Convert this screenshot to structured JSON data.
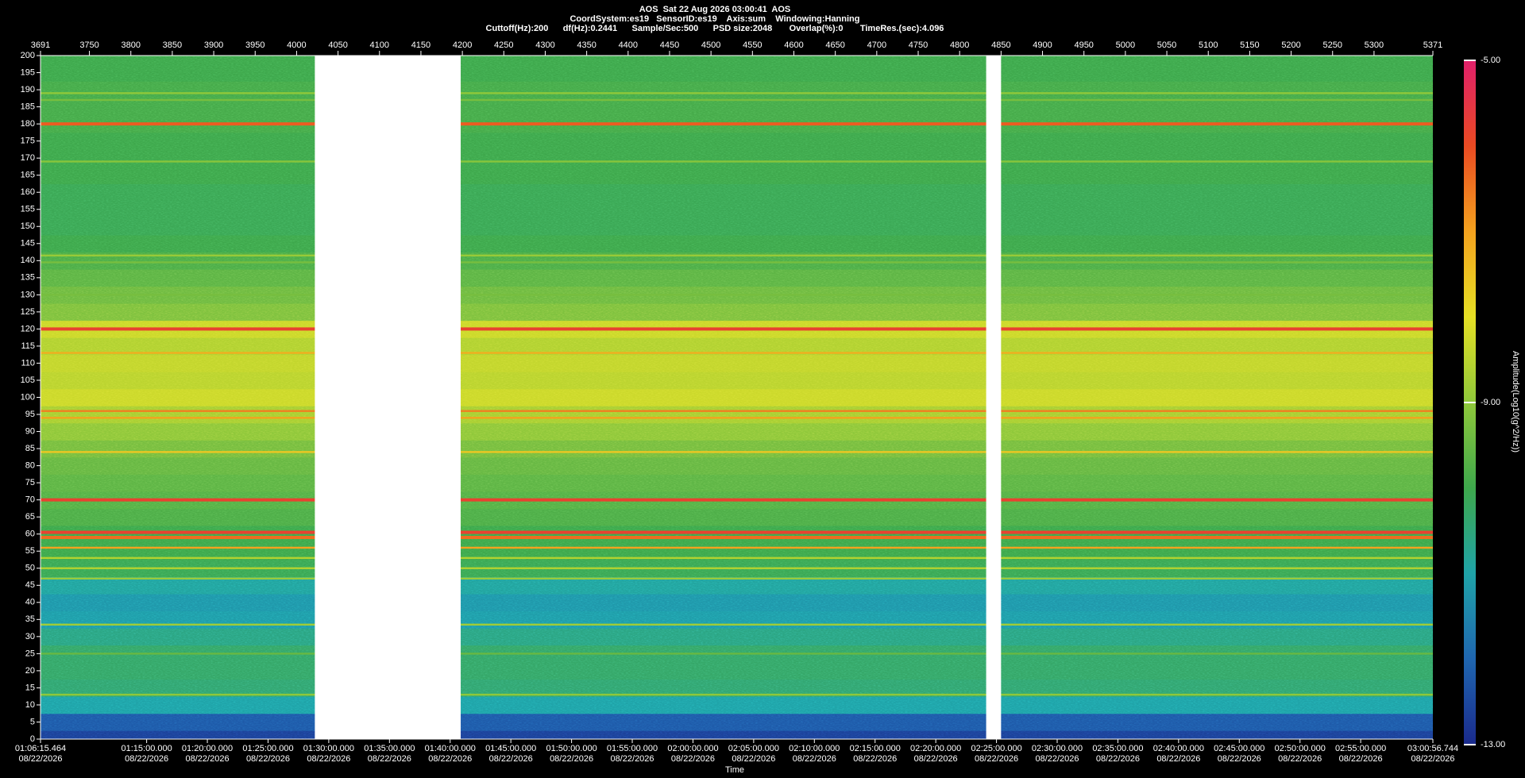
{
  "chart_data": {
    "type": "spectrogram",
    "title": "AOS  Sat 22 Aug 2026 03:00:41  AOS",
    "subtitle": "CoordSystem:es19   SensorID:es19    Axis:sum    Windowing:Hanning",
    "settings_line": "Cuttoff(Hz):200      df(Hz):0.2441      Sample/Sec:500      PSD size:2048       Overlap(%):0       TimeRes.(sec):4.096",
    "x_label": "Time",
    "colorbar_label": "Amplitude(Log10(g^2/Hz))",
    "xlim": [
      3691,
      5371
    ],
    "xticks": [
      3691,
      3750,
      3800,
      3850,
      3900,
      3950,
      4000,
      4050,
      4100,
      4150,
      4200,
      4250,
      4300,
      4350,
      4400,
      4450,
      4500,
      4550,
      4600,
      4650,
      4700,
      4750,
      4800,
      4850,
      4900,
      4950,
      5000,
      5050,
      5100,
      5150,
      5200,
      5250,
      5300,
      5371
    ],
    "xticks_bottom": [
      {
        "value": 3691,
        "label": "01:06:15.464",
        "date": "08/22/2026"
      },
      {
        "value": 3819.06,
        "label": "01:15:00.000",
        "date": "08/22/2026"
      },
      {
        "value": 3892.3,
        "label": "01:20:00.000",
        "date": "08/22/2026"
      },
      {
        "value": 3965.55,
        "label": "01:25:00.000",
        "date": "08/22/2026"
      },
      {
        "value": 4038.79,
        "label": "01:30:00.000",
        "date": "08/22/2026"
      },
      {
        "value": 4112.03,
        "label": "01:35:00.000",
        "date": "08/22/2026"
      },
      {
        "value": 4185.28,
        "label": "01:40:00.000",
        "date": "08/22/2026"
      },
      {
        "value": 4258.52,
        "label": "01:45:00.000",
        "date": "08/22/2026"
      },
      {
        "value": 4331.76,
        "label": "01:50:00.000",
        "date": "08/22/2026"
      },
      {
        "value": 4405.0,
        "label": "01:55:00.000",
        "date": "08/22/2026"
      },
      {
        "value": 4478.25,
        "label": "02:00:00.000",
        "date": "08/22/2026"
      },
      {
        "value": 4551.49,
        "label": "02:05:00.000",
        "date": "08/22/2026"
      },
      {
        "value": 4624.73,
        "label": "02:10:00.000",
        "date": "08/22/2026"
      },
      {
        "value": 4697.98,
        "label": "02:15:00.000",
        "date": "08/22/2026"
      },
      {
        "value": 4771.22,
        "label": "02:20:00.000",
        "date": "08/22/2026"
      },
      {
        "value": 4844.46,
        "label": "02:25:00.000",
        "date": "08/22/2026"
      },
      {
        "value": 4917.71,
        "label": "02:30:00.000",
        "date": "08/22/2026"
      },
      {
        "value": 4990.95,
        "label": "02:35:00.000",
        "date": "08/22/2026"
      },
      {
        "value": 5064.19,
        "label": "02:40:00.000",
        "date": "08/22/2026"
      },
      {
        "value": 5137.44,
        "label": "02:45:00.000",
        "date": "08/22/2026"
      },
      {
        "value": 5210.68,
        "label": "02:50:00.000",
        "date": "08/22/2026"
      },
      {
        "value": 5283.92,
        "label": "02:55:00.000",
        "date": "08/22/2026"
      },
      {
        "value": 5371,
        "label": "03:00:56.744",
        "date": "08/22/2026"
      }
    ],
    "ylim": [
      0,
      200
    ],
    "yticks": [
      0,
      5,
      10,
      15,
      20,
      25,
      30,
      35,
      40,
      45,
      50,
      55,
      60,
      65,
      70,
      75,
      80,
      85,
      90,
      95,
      100,
      105,
      110,
      115,
      120,
      125,
      130,
      135,
      140,
      145,
      150,
      155,
      160,
      165,
      170,
      175,
      180,
      185,
      190,
      195,
      200
    ],
    "clim": [
      -13,
      -5
    ],
    "cticks": [
      {
        "value": -13,
        "label": "-13.00"
      },
      {
        "value": -9,
        "label": "-9.00"
      },
      {
        "value": -5,
        "label": "-5.00"
      }
    ],
    "colormap": [
      "#1a2a8c",
      "#1f66b0",
      "#1fa3a8",
      "#3ea84c",
      "#8fc83a",
      "#e6e024",
      "#f4a21e",
      "#ea4a22",
      "#e0206a"
    ],
    "profile_hz": [
      0,
      5,
      10,
      15,
      20,
      25,
      30,
      35,
      40,
      45,
      50,
      55,
      60,
      65,
      70,
      75,
      80,
      85,
      90,
      95,
      100,
      105,
      110,
      115,
      120,
      125,
      130,
      135,
      140,
      145,
      150,
      155,
      160,
      165,
      170,
      175,
      180,
      185,
      190,
      195,
      200
    ],
    "profile_amplitude": [
      -12.6,
      -12.2,
      -11.0,
      -10.4,
      -10.3,
      -10.3,
      -10.6,
      -11.1,
      -11.2,
      -10.9,
      -10.1,
      -10.0,
      -10.0,
      -9.8,
      -9.7,
      -9.6,
      -9.5,
      -9.3,
      -9.0,
      -8.7,
      -8.3,
      -8.5,
      -8.4,
      -8.6,
      -8.3,
      -9.2,
      -9.4,
      -9.6,
      -9.8,
      -10.0,
      -10.1,
      -10.1,
      -10.1,
      -10.0,
      -10.0,
      -10.0,
      -9.9,
      -9.9,
      -9.9,
      -10.0,
      -10.0
    ],
    "lines": [
      {
        "hz": 180,
        "amplitude": -6.2
      },
      {
        "hz": 120,
        "amplitude": -5.8
      },
      {
        "hz": 113,
        "amplitude": -7.2
      },
      {
        "hz": 96,
        "amplitude": -6.6
      },
      {
        "hz": 94,
        "amplitude": -7.0
      },
      {
        "hz": 84,
        "amplitude": -7.6
      },
      {
        "hz": 70,
        "amplitude": -5.8
      },
      {
        "hz": 60.5,
        "amplitude": -5.8
      },
      {
        "hz": 59,
        "amplitude": -6.4
      },
      {
        "hz": 56,
        "amplitude": -7.0
      },
      {
        "hz": 53,
        "amplitude": -8.6
      },
      {
        "hz": 50,
        "amplitude": -8.6
      },
      {
        "hz": 47,
        "amplitude": -8.8
      },
      {
        "hz": 33.5,
        "amplitude": -8.8
      },
      {
        "hz": 189,
        "amplitude": -9.0
      },
      {
        "hz": 187,
        "amplitude": -9.3
      },
      {
        "hz": 169,
        "amplitude": -9.1
      },
      {
        "hz": 141.5,
        "amplitude": -8.9
      },
      {
        "hz": 139.5,
        "amplitude": -9.3
      },
      {
        "hz": 130,
        "amplitude": -9.3
      },
      {
        "hz": 25,
        "amplitude": -9.5
      },
      {
        "hz": 13,
        "amplitude": -9.0
      }
    ],
    "gaps": [
      [
        4022,
        4198
      ],
      [
        4832,
        4850
      ]
    ]
  }
}
